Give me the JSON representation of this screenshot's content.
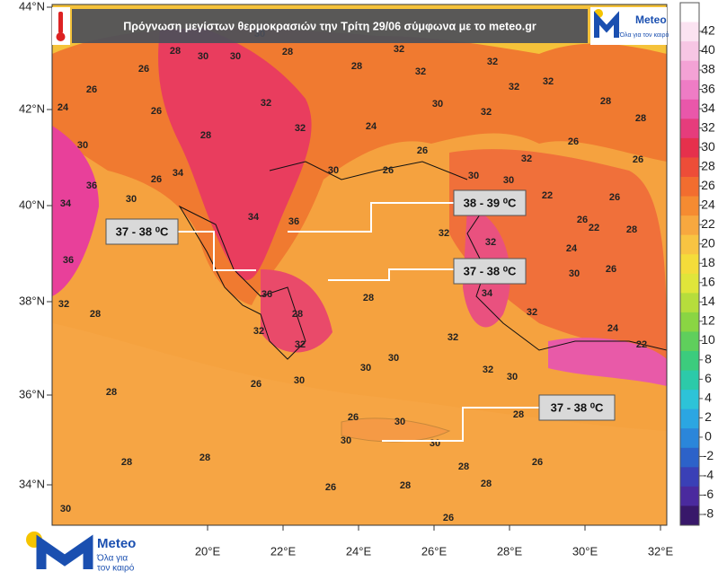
{
  "header": {
    "title": "Πρόγνωση μεγίστων θερμοκρασιών  την Τρίτη 29/06 σύμφωνα με το meteo.gr"
  },
  "logo_top": {
    "name": "Meteo",
    "tagline": "Όλα για τον καιρό"
  },
  "logo_bottom": {
    "name": "Meteo",
    "tagline_1": "Όλα για",
    "tagline_2": "τον καιρό"
  },
  "lat_labels": [
    "44°N",
    "42°N",
    "40°N",
    "38°N",
    "36°N",
    "34°N"
  ],
  "lon_labels": [
    "20°E",
    "22°E",
    "24°E",
    "26°E",
    "28°E",
    "30°E",
    "32°E"
  ],
  "colorbar": {
    "ticks": [
      42,
      40,
      38,
      36,
      34,
      32,
      30,
      28,
      26,
      24,
      22,
      20,
      18,
      16,
      14,
      12,
      10,
      8,
      6,
      4,
      2,
      0,
      -2,
      -4,
      -6,
      -8
    ],
    "colors": [
      "#ffffff",
      "#fbe3f1",
      "#f7c6e4",
      "#f3a2d5",
      "#ee7cc5",
      "#e957aa",
      "#e63c7c",
      "#e6304c",
      "#ed4d38",
      "#f26d2f",
      "#f58b31",
      "#f7a83f",
      "#f8c442",
      "#f4dc3a",
      "#e0e53a",
      "#b6dd3c",
      "#8ad543",
      "#5fcf5c",
      "#3ccc7d",
      "#2ccaa9",
      "#2dc3d8",
      "#2ba6e2",
      "#2b86da",
      "#2c62c9",
      "#3a40b6",
      "#4a2a9e",
      "#38186a"
    ]
  },
  "callouts": [
    "37 - 38 ⁰C",
    "38 - 39 ⁰C",
    "37 - 38 ⁰C",
    "37 - 38 ⁰C"
  ],
  "map_labels": [
    26,
    26,
    28,
    30,
    30,
    30,
    28,
    28,
    32,
    32,
    32,
    32,
    32,
    28,
    28,
    24,
    26,
    28,
    32,
    32,
    24,
    30,
    32,
    26,
    30,
    34,
    26,
    30,
    36,
    34,
    36,
    32,
    34,
    36,
    30,
    26,
    26,
    30,
    30,
    32,
    22,
    26,
    26,
    26,
    32,
    32,
    22,
    24,
    26,
    28,
    36,
    28,
    32,
    32,
    28,
    30,
    32,
    34,
    32,
    30,
    24,
    22,
    30,
    32,
    26,
    30,
    30,
    26,
    30,
    30,
    30,
    28,
    28,
    26,
    28,
    28,
    26,
    28,
    26,
    30,
    28,
    28,
    28
  ]
}
